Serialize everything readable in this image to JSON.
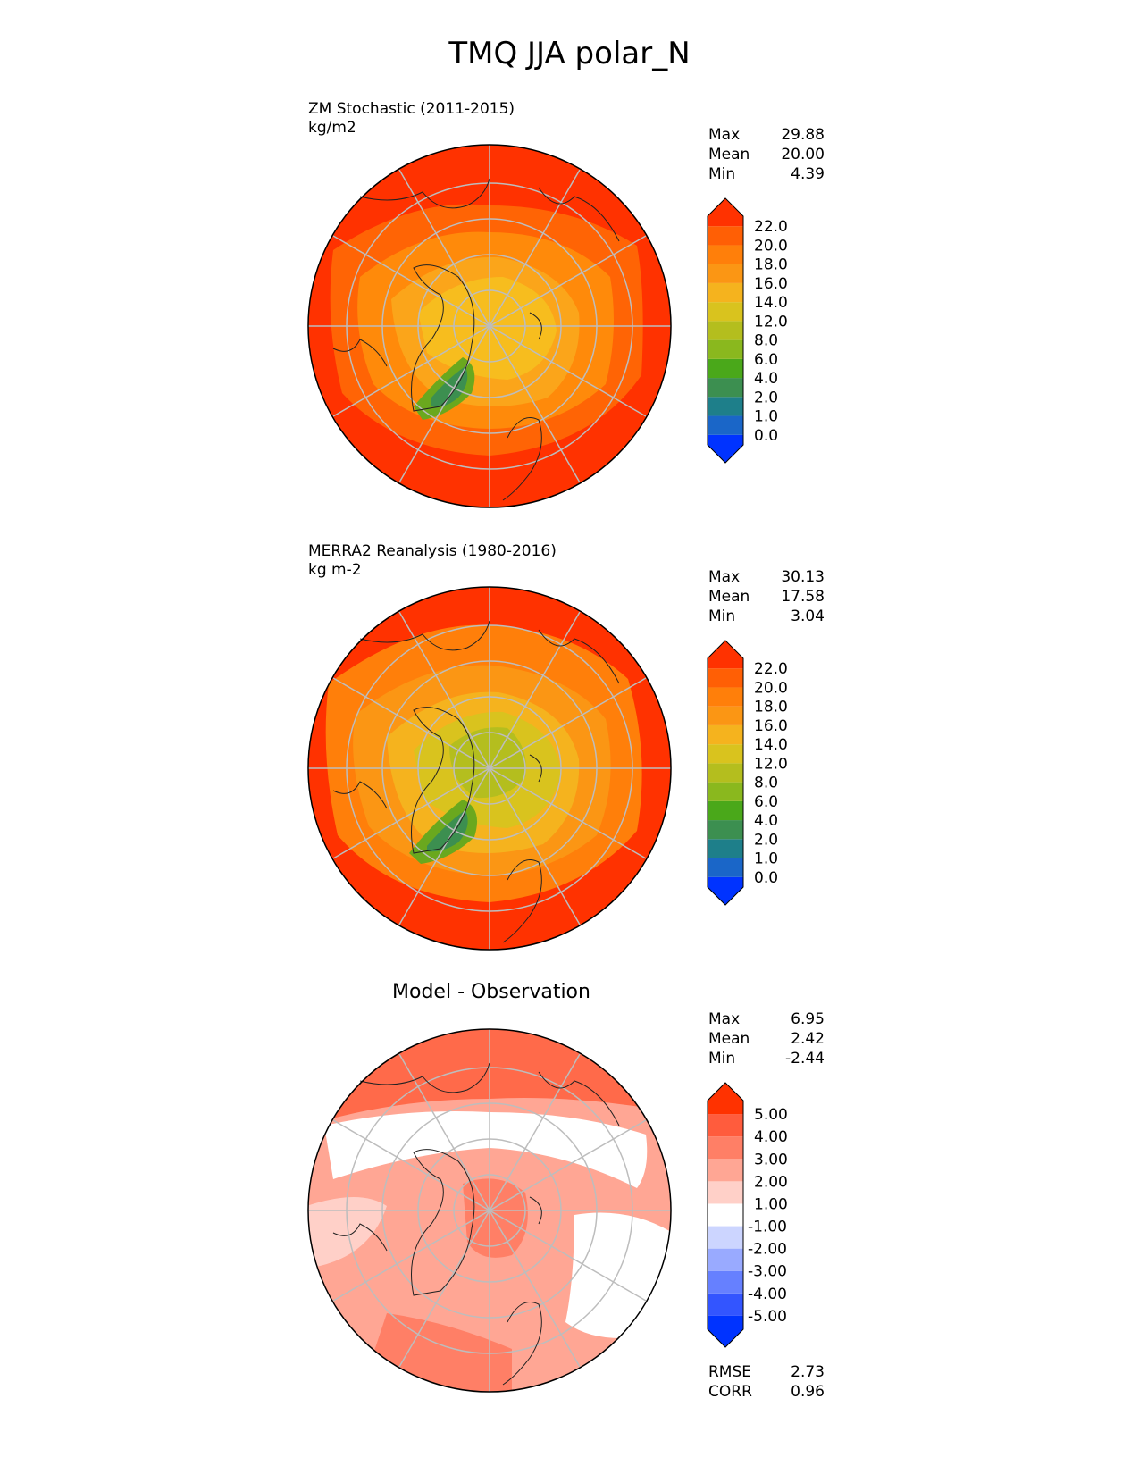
{
  "figure": {
    "title": "TMQ JJA polar_N"
  },
  "panels": [
    {
      "label_line1": "ZM Stochastic (2011-2015)",
      "label_line2": "kg/m2",
      "stats": [
        {
          "name": "Max",
          "value": "29.88"
        },
        {
          "name": "Mean",
          "value": "20.00"
        },
        {
          "name": "Min",
          "value": "4.39"
        }
      ],
      "colorbar": {
        "colors": [
          "#0033ff",
          "#1a66c8",
          "#1e7f8a",
          "#3c8f50",
          "#4aa81a",
          "#8ab81e",
          "#b4be1e",
          "#d9c31e",
          "#f5b31e",
          "#fb9614",
          "#ff7f0a",
          "#ff5f05",
          "#ff3200"
        ],
        "labels": [
          "0.0",
          "1.0",
          "2.0",
          "4.0",
          "6.0",
          "8.0",
          "12.0",
          "14.0",
          "16.0",
          "18.0",
          "20.0",
          "22.0"
        ]
      }
    },
    {
      "label_line1": "MERRA2 Reanalysis (1980-2016)",
      "label_line2": "kg m-2",
      "stats": [
        {
          "name": "Max",
          "value": "30.13"
        },
        {
          "name": "Mean",
          "value": "17.58"
        },
        {
          "name": "Min",
          "value": "3.04"
        }
      ],
      "colorbar": {
        "colors": [
          "#0033ff",
          "#1a66c8",
          "#1e7f8a",
          "#3c8f50",
          "#4aa81a",
          "#8ab81e",
          "#b4be1e",
          "#d9c31e",
          "#f5b31e",
          "#fb9614",
          "#ff7f0a",
          "#ff5f05",
          "#ff3200"
        ],
        "labels": [
          "0.0",
          "1.0",
          "2.0",
          "4.0",
          "6.0",
          "8.0",
          "12.0",
          "14.0",
          "16.0",
          "18.0",
          "20.0",
          "22.0"
        ]
      }
    },
    {
      "title": "Model - Observation",
      "stats": [
        {
          "name": "Max",
          "value": "6.95"
        },
        {
          "name": "Mean",
          "value": "2.42"
        },
        {
          "name": "Min",
          "value": "-2.44"
        }
      ],
      "colorbar": {
        "colors": [
          "#0033ff",
          "#3355ff",
          "#6680ff",
          "#99aaff",
          "#ccd5ff",
          "#ffffff",
          "#ffd0c8",
          "#ffa694",
          "#ff7f66",
          "#ff5c3d",
          "#ff3200"
        ],
        "labels": [
          "-5.00",
          "-4.00",
          "-3.00",
          "-2.00",
          "-1.00",
          "1.00",
          "2.00",
          "3.00",
          "4.00",
          "5.00"
        ]
      },
      "metrics": [
        {
          "name": "RMSE",
          "value": "2.73"
        },
        {
          "name": "CORR",
          "value": "0.96"
        }
      ]
    }
  ]
}
